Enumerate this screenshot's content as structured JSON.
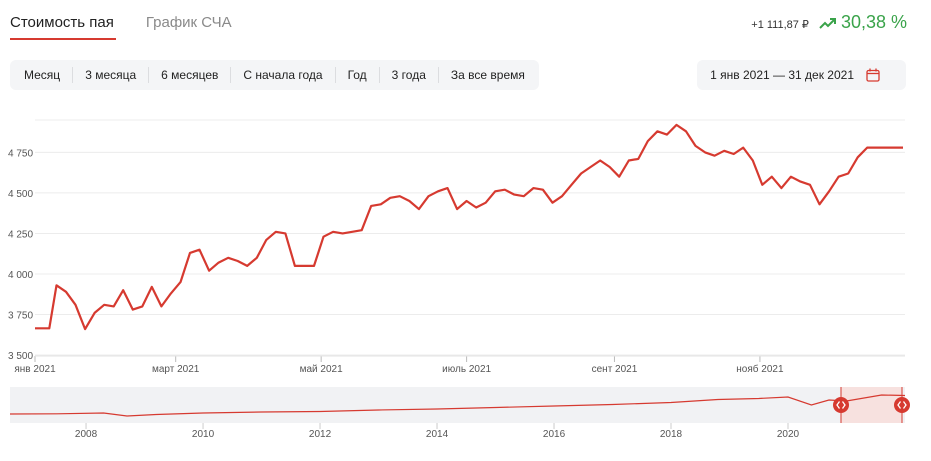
{
  "tabs": [
    {
      "label": "Стоимость пая",
      "active": true
    },
    {
      "label": "График СЧА",
      "active": false
    }
  ],
  "summary": {
    "change": "+1 111,87 ₽",
    "percent": "30,38 %",
    "trend_icon": "trend-up-icon",
    "color": "#3aa34a"
  },
  "periods": [
    "Месяц",
    "3 месяца",
    "6 месяцев",
    "С начала года",
    "Год",
    "3 года",
    "За все время"
  ],
  "date_range": {
    "label": "1 янв 2021 — 31 дек 2021",
    "icon": "calendar-icon"
  },
  "colors": {
    "accent": "#d63a30",
    "line": "#d63a30",
    "grid": "#ececec"
  },
  "chart_data": [
    {
      "type": "line",
      "title": "",
      "xlabel": "",
      "ylabel": "",
      "ylim": [
        3500,
        4950
      ],
      "y_ticks": [
        "3 500",
        "3 750",
        "4 000",
        "4 250",
        "4 500",
        "4 750"
      ],
      "x_ticks": [
        "янв 2021",
        "март 2021",
        "май 2021",
        "июль 2021",
        "сент 2021",
        "нояб 2021"
      ],
      "grid": true,
      "series": [
        {
          "x": [
            "2021-01-01",
            "2021-01-07",
            "2021-01-10",
            "2021-01-14",
            "2021-01-18",
            "2021-01-22",
            "2021-01-26",
            "2021-01-30",
            "2021-02-03",
            "2021-02-07",
            "2021-02-11",
            "2021-02-15",
            "2021-02-19",
            "2021-02-23",
            "2021-02-27",
            "2021-03-03",
            "2021-03-07",
            "2021-03-11",
            "2021-03-15",
            "2021-03-19",
            "2021-03-23",
            "2021-03-27",
            "2021-03-31",
            "2021-04-04",
            "2021-04-08",
            "2021-04-12",
            "2021-04-16",
            "2021-04-20",
            "2021-04-24",
            "2021-04-28",
            "2021-05-02",
            "2021-05-06",
            "2021-05-10",
            "2021-05-14",
            "2021-05-18",
            "2021-05-22",
            "2021-05-26",
            "2021-05-30",
            "2021-06-03",
            "2021-06-07",
            "2021-06-11",
            "2021-06-15",
            "2021-06-19",
            "2021-06-23",
            "2021-06-27",
            "2021-07-01",
            "2021-07-05",
            "2021-07-09",
            "2021-07-13",
            "2021-07-17",
            "2021-07-21",
            "2021-07-25",
            "2021-07-29",
            "2021-08-02",
            "2021-08-06",
            "2021-08-10",
            "2021-08-14",
            "2021-08-18",
            "2021-08-22",
            "2021-08-26",
            "2021-08-30",
            "2021-09-03",
            "2021-09-07",
            "2021-09-11",
            "2021-09-15",
            "2021-09-19",
            "2021-09-23",
            "2021-09-27",
            "2021-10-01",
            "2021-10-05",
            "2021-10-09",
            "2021-10-13",
            "2021-10-17",
            "2021-10-21",
            "2021-10-25",
            "2021-10-29",
            "2021-11-02",
            "2021-11-06",
            "2021-11-10",
            "2021-11-14",
            "2021-11-18",
            "2021-11-22",
            "2021-11-26",
            "2021-11-30",
            "2021-12-04",
            "2021-12-08",
            "2021-12-12",
            "2021-12-16",
            "2021-12-20",
            "2021-12-24",
            "2021-12-28",
            "2021-12-31"
          ],
          "values": [
            3665,
            3665,
            3930,
            3890,
            3810,
            3660,
            3760,
            3810,
            3800,
            3900,
            3780,
            3800,
            3920,
            3800,
            3880,
            3950,
            4130,
            4150,
            4020,
            4070,
            4100,
            4080,
            4050,
            4100,
            4210,
            4260,
            4250,
            4050,
            4050,
            4050,
            4230,
            4260,
            4250,
            4260,
            4270,
            4420,
            4430,
            4470,
            4480,
            4450,
            4400,
            4480,
            4510,
            4530,
            4400,
            4450,
            4410,
            4440,
            4510,
            4520,
            4490,
            4480,
            4530,
            4520,
            4440,
            4480,
            4550,
            4620,
            4660,
            4700,
            4660,
            4600,
            4700,
            4710,
            4820,
            4880,
            4860,
            4920,
            4880,
            4790,
            4750,
            4730,
            4760,
            4740,
            4780,
            4700,
            4550,
            4600,
            4530,
            4600,
            4570,
            4550,
            4430,
            4510,
            4600,
            4620,
            4720,
            4780,
            4780,
            4780,
            4780,
            4780
          ]
        }
      ]
    },
    {
      "type": "area",
      "title": "",
      "x_ticks": [
        "2008",
        "2010",
        "2012",
        "2014",
        "2016",
        "2018",
        "2020"
      ],
      "series": [
        {
          "x": [
            2006.7,
            2007.5,
            2008.3,
            2008.7,
            2009.2,
            2010,
            2011,
            2012,
            2013,
            2014,
            2015,
            2016,
            2017,
            2018,
            2018.8,
            2019.5,
            2020,
            2020.4,
            2020.7,
            2021,
            2021.6,
            2022
          ],
          "values": [
            1,
            1.05,
            1.2,
            0.6,
            0.9,
            1.2,
            1.4,
            1.5,
            1.8,
            2.0,
            2.3,
            2.6,
            2.9,
            3.3,
            3.9,
            4.1,
            4.4,
            2.8,
            3.8,
            3.6,
            4.8,
            4.7
          ]
        }
      ]
    }
  ]
}
